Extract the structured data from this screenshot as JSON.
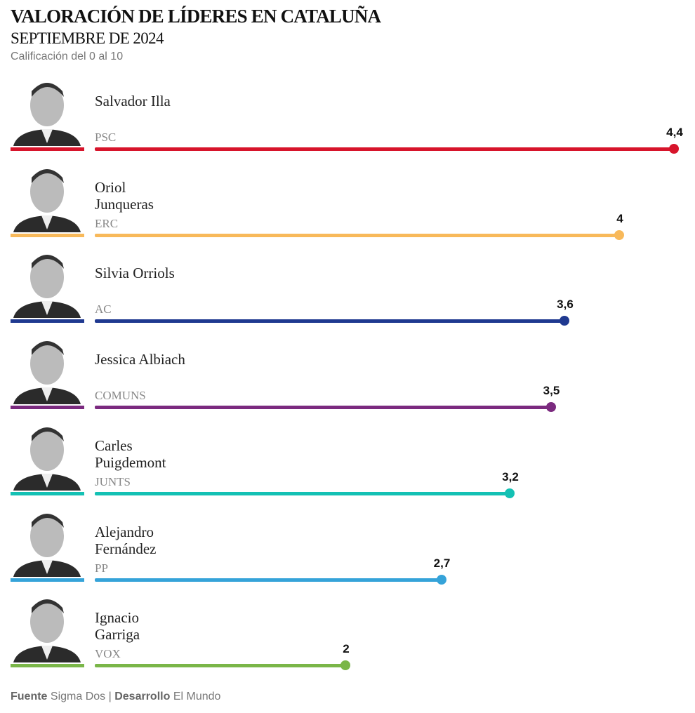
{
  "chart_data": {
    "type": "lollipop",
    "title": "VALORACIÓN DE LÍDERES EN CATALUÑA",
    "subtitle": "SEPTIEMBRE DE 2024",
    "note": "Calificación del 0 al 10",
    "categories": [
      "Salvador Illa",
      "Oriol Junqueras",
      "Silvia Orriols",
      "Jessica Albiach",
      "Carles Puigdemont",
      "Alejandro Fernández",
      "Ignacio Garriga"
    ],
    "parties": [
      "PSC",
      "ERC",
      "AC",
      "COMUNS",
      "JUNTS",
      "PP",
      "VOX"
    ],
    "colors": [
      "#d7142b",
      "#f8b95a",
      "#1f3990",
      "#7b2a7f",
      "#14c1b4",
      "#35a3d9",
      "#7ab648"
    ],
    "values": [
      4.4,
      4,
      3.6,
      3.5,
      3.2,
      2.7,
      2
    ],
    "value_labels": [
      "4,4",
      "4",
      "3,6",
      "3,5",
      "3,2",
      "2,7",
      "2"
    ],
    "footer": {
      "source_label": "Fuente",
      "source": "Sigma Dos",
      "separator": "|",
      "dev_label": "Desarrollo",
      "dev": "El Mundo"
    }
  }
}
